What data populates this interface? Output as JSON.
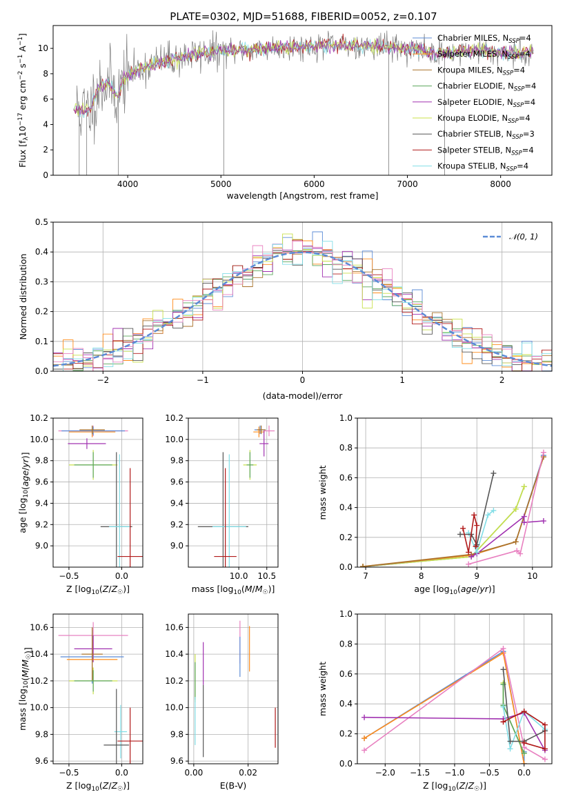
{
  "title": "PLATE=0302, MJD=51688, FIBERID=0052, z=0.107",
  "colors": {
    "Chabrier MILES": "#5b8bd6",
    "Salpeter MILES": "#ff8c1a",
    "Kroupa MILES": "#a8722a",
    "Chabrier ELODIE": "#5aa55a",
    "Salpeter ELODIE": "#a030b0",
    "Kroupa ELODIE": "#c8e04a",
    "Chabrier STELIB": "#555555",
    "Salpeter STELIB": "#b01818",
    "Kroupa STELIB": "#80dde6",
    "Pink": "#e880c0",
    "Normal": "#5b8bd6"
  },
  "chart_data": [
    {
      "id": "spectrum",
      "type": "line",
      "xlabel": "wavelength [Angstrom, rest frame]",
      "ylabel": "Flux [fλ10⁻¹⁷ erg cm⁻² s⁻¹ A⁻¹]",
      "xlim": [
        3200,
        8550
      ],
      "ylim": [
        0,
        11.8
      ],
      "xticks": [
        4000,
        5000,
        6000,
        7000,
        8000
      ],
      "yticks": [
        0,
        2,
        4,
        6,
        8,
        10
      ],
      "legend_position": "top-right",
      "legend": [
        {
          "name": "Chabrier MILES, N_SSP=4",
          "base": "Chabrier MILES, N",
          "sub": "SSP",
          "tail": "=4",
          "color": "#5b8bd6"
        },
        {
          "name": "Salpeter MILES, N_SSP=4",
          "base": "Salpeter MILES, N",
          "sub": "SSP",
          "tail": "=4",
          "color": "#ff8c1a"
        },
        {
          "name": "Kroupa MILES, N_SSP=4",
          "base": "Kroupa MILES, N",
          "sub": "SSP",
          "tail": "=4",
          "color": "#a8722a"
        },
        {
          "name": "Chabrier ELODIE, N_SSP=4",
          "base": "Chabrier ELODIE, N",
          "sub": "SSP",
          "tail": "=4",
          "color": "#5aa55a"
        },
        {
          "name": "Salpeter ELODIE, N_SSP=4",
          "base": "Salpeter ELODIE, N",
          "sub": "SSP",
          "tail": "=4",
          "color": "#a030b0"
        },
        {
          "name": "Kroupa ELODIE, N_SSP=4",
          "base": "Kroupa ELODIE, N",
          "sub": "SSP",
          "tail": "=4",
          "color": "#c8e04a"
        },
        {
          "name": "Chabrier STELIB, N_SSP=3",
          "base": "Chabrier STELIB, N",
          "sub": "SSP",
          "tail": "=3",
          "color": "#555555"
        },
        {
          "name": "Salpeter STELIB, N_SSP=4",
          "base": "Salpeter STELIB, N",
          "sub": "SSP",
          "tail": "=4",
          "color": "#b01818"
        },
        {
          "name": "Kroupa STELIB, N_SSP=4",
          "base": "Kroupa STELIB, N",
          "sub": "SSP",
          "tail": "=4",
          "color": "#80dde6"
        }
      ],
      "continuum_knots": [
        [
          3400,
          5.6
        ],
        [
          3500,
          5.0
        ],
        [
          3600,
          5.2
        ],
        [
          3700,
          7.0
        ],
        [
          3800,
          7.3
        ],
        [
          3900,
          6.2
        ],
        [
          3950,
          7.6
        ],
        [
          4100,
          8.3
        ],
        [
          4300,
          8.8
        ],
        [
          4500,
          9.2
        ],
        [
          4800,
          9.6
        ],
        [
          5000,
          9.75
        ],
        [
          5500,
          10.0
        ],
        [
          6000,
          10.2
        ],
        [
          6500,
          10.25
        ],
        [
          7000,
          10.0
        ],
        [
          7300,
          9.6
        ],
        [
          7500,
          9.7
        ],
        [
          7800,
          9.8
        ],
        [
          8000,
          9.7
        ],
        [
          8200,
          9.6
        ],
        [
          8350,
          9.75
        ]
      ]
    },
    {
      "id": "residuals",
      "type": "bar",
      "xlabel": "(data-model)/error",
      "ylabel": "Normed distribution",
      "xlim": [
        -2.5,
        2.5
      ],
      "ylim": [
        0,
        0.5
      ],
      "xticks": [
        -2,
        -1,
        0,
        1,
        2
      ],
      "yticks": [
        0.0,
        0.1,
        0.2,
        0.3,
        0.4,
        0.5
      ],
      "legend": [
        {
          "name": "𝒩(0, 1)",
          "color": "#5b8bd6"
        }
      ],
      "legend_position": "top-right"
    },
    {
      "id": "age-vs-Z",
      "type": "scatter",
      "xlabel": "Z [log10(Z/Z☉)]",
      "ylabel": "age [log10(age/yr)]",
      "xlim": [
        -0.65,
        0.2
      ],
      "ylim": [
        8.8,
        10.2
      ],
      "xticks": [
        -0.5,
        0.0
      ],
      "yticks": [
        9.0,
        9.2,
        9.4,
        9.6,
        9.8,
        10.0,
        10.2
      ],
      "points": [
        {
          "x": -0.27,
          "y": 10.08,
          "xerr": 0.33,
          "yerr": 0.05,
          "color": "#e880c0"
        },
        {
          "x": -0.27,
          "y": 10.08,
          "xerr": 0.3,
          "yerr": 0.04,
          "color": "#5b8bd6"
        },
        {
          "x": -0.28,
          "y": 10.07,
          "xerr": 0.22,
          "yerr": 0.05,
          "color": "#ff8c1a"
        },
        {
          "x": -0.28,
          "y": 10.09,
          "xerr": 0.12,
          "yerr": 0.04,
          "color": "#a8722a"
        },
        {
          "x": -0.33,
          "y": 9.96,
          "xerr": 0.18,
          "yerr": 0.05,
          "color": "#a030b0"
        },
        {
          "x": -0.27,
          "y": 9.76,
          "xerr": 0.23,
          "yerr": 0.14,
          "color": "#c8e04a"
        },
        {
          "x": -0.27,
          "y": 9.76,
          "xerr": 0.18,
          "yerr": 0.12,
          "color": "#5aa55a"
        },
        {
          "x": -0.05,
          "y": 9.18,
          "xerr": 0.15,
          "yerr": 0.7,
          "color": "#555555"
        },
        {
          "x": -0.02,
          "y": 9.18,
          "xerr": 0.1,
          "yerr": 0.68,
          "color": "#80dde6"
        },
        {
          "x": 0.08,
          "y": 8.9,
          "xerr": 0.12,
          "yerr": 0.83,
          "color": "#b01818"
        }
      ]
    },
    {
      "id": "age-vs-mass",
      "type": "scatter",
      "xlabel": "mass [log10(M/M☉)]",
      "ylabel": "",
      "xlim": [
        9.1,
        10.7
      ],
      "ylim": [
        8.8,
        10.2
      ],
      "xticks": [
        10.0,
        10.5
      ],
      "yticks": [
        9.0,
        9.2,
        9.4,
        9.6,
        9.8,
        10.0,
        10.2
      ],
      "points": [
        {
          "x": 10.54,
          "y": 10.08,
          "xerr": 0.1,
          "yerr": 0.05,
          "color": "#e880c0"
        },
        {
          "x": 10.38,
          "y": 10.09,
          "xerr": 0.1,
          "yerr": 0.04,
          "color": "#5b8bd6"
        },
        {
          "x": 10.36,
          "y": 10.07,
          "xerr": 0.1,
          "yerr": 0.05,
          "color": "#ff8c1a"
        },
        {
          "x": 10.4,
          "y": 10.09,
          "xerr": 0.08,
          "yerr": 0.04,
          "color": "#a8722a"
        },
        {
          "x": 10.45,
          "y": 9.96,
          "xerr": 0.08,
          "yerr": 0.12,
          "color": "#a030b0"
        },
        {
          "x": 10.2,
          "y": 9.76,
          "xerr": 0.12,
          "yerr": 0.14,
          "color": "#c8e04a"
        },
        {
          "x": 10.2,
          "y": 9.76,
          "xerr": 0.06,
          "yerr": 0.12,
          "color": "#5aa55a"
        },
        {
          "x": 9.72,
          "y": 9.18,
          "xerr": 0.45,
          "yerr": 0.7,
          "color": "#555555"
        },
        {
          "x": 9.83,
          "y": 9.18,
          "xerr": 0.3,
          "yerr": 0.68,
          "color": "#80dde6"
        },
        {
          "x": 9.76,
          "y": 8.9,
          "xerr": 0.2,
          "yerr": 0.83,
          "color": "#b01818"
        }
      ]
    },
    {
      "id": "weight-vs-age",
      "type": "line",
      "xlabel": "age [log10(age/yr)]",
      "ylabel": "mass weight",
      "xlim": [
        6.85,
        10.35
      ],
      "ylim": [
        0,
        1.0
      ],
      "xticks": [
        7,
        8,
        9,
        10
      ],
      "yticks": [
        0.0,
        0.2,
        0.4,
        0.6,
        0.8,
        1.0
      ],
      "series": [
        {
          "color": "#5aa55a",
          "points": [
            [
              6.95,
              0.003
            ],
            [
              8.9,
              0.07
            ],
            [
              9.7,
              0.39
            ],
            [
              9.85,
              0.54
            ]
          ]
        },
        {
          "color": "#c8e04a",
          "points": [
            [
              6.95,
              0.003
            ],
            [
              8.9,
              0.07
            ],
            [
              9.7,
              0.39
            ],
            [
              9.85,
              0.54
            ]
          ]
        },
        {
          "color": "#5b8bd6",
          "points": [
            [
              6.95,
              0.003
            ],
            [
              8.9,
              0.08
            ],
            [
              9.7,
              0.17
            ],
            [
              10.2,
              0.75
            ]
          ]
        },
        {
          "color": "#ff8c1a",
          "points": [
            [
              6.95,
              0.004
            ],
            [
              8.9,
              0.08
            ],
            [
              9.7,
              0.17
            ],
            [
              10.2,
              0.74
            ]
          ]
        },
        {
          "color": "#a8722a",
          "points": [
            [
              6.95,
              0.004
            ],
            [
              8.9,
              0.085
            ],
            [
              9.7,
              0.17
            ],
            [
              10.2,
              0.74
            ]
          ]
        },
        {
          "color": "#a030b0",
          "points": [
            [
              8.9,
              0.07
            ],
            [
              9.0,
              0.09
            ],
            [
              9.85,
              0.34
            ],
            [
              9.85,
              0.3
            ],
            [
              10.2,
              0.31
            ]
          ]
        },
        {
          "color": "#e880c0",
          "points": [
            [
              8.85,
              0.02
            ],
            [
              9.72,
              0.11
            ],
            [
              9.78,
              0.09
            ],
            [
              10.2,
              0.77
            ]
          ]
        },
        {
          "color": "#80dde6",
          "points": [
            [
              8.85,
              0.23
            ],
            [
              9.0,
              0.1
            ],
            [
              9.2,
              0.35
            ],
            [
              9.3,
              0.38
            ]
          ]
        },
        {
          "color": "#555555",
          "points": [
            [
              8.7,
              0.22
            ],
            [
              8.9,
              0.22
            ],
            [
              9.0,
              0.15
            ],
            [
              9.3,
              0.63
            ]
          ]
        },
        {
          "color": "#b01818",
          "points": [
            [
              8.75,
              0.26
            ],
            [
              8.85,
              0.1
            ],
            [
              8.95,
              0.35
            ],
            [
              9.0,
              0.28
            ],
            [
              8.98,
              0.14
            ]
          ]
        }
      ]
    },
    {
      "id": "mass-vs-Z",
      "type": "scatter",
      "xlabel": "Z [log10(Z/Z☉)]",
      "ylabel": "mass [log10(M/M☉)]",
      "xlim": [
        -0.65,
        0.2
      ],
      "ylim": [
        9.58,
        10.7
      ],
      "xticks": [
        -0.5,
        0.0
      ],
      "yticks": [
        9.6,
        9.8,
        10.0,
        10.2,
        10.4,
        10.6
      ],
      "points": [
        {
          "x": -0.27,
          "y": 10.54,
          "xerr": 0.33,
          "yerr": 0.1,
          "color": "#e880c0"
        },
        {
          "x": -0.27,
          "y": 10.44,
          "xerr": 0.18,
          "yerr": 0.1,
          "color": "#a030b0"
        },
        {
          "x": -0.28,
          "y": 10.38,
          "xerr": 0.3,
          "yerr": 0.2,
          "color": "#5b8bd6"
        },
        {
          "x": -0.28,
          "y": 10.36,
          "xerr": 0.24,
          "yerr": 0.15,
          "color": "#ff8c1a"
        },
        {
          "x": -0.28,
          "y": 10.4,
          "xerr": 0.1,
          "yerr": 0.2,
          "color": "#a8722a"
        },
        {
          "x": -0.27,
          "y": 10.2,
          "xerr": 0.23,
          "yerr": 0.1,
          "color": "#c8e04a"
        },
        {
          "x": -0.27,
          "y": 10.2,
          "xerr": 0.18,
          "yerr": 0.08,
          "color": "#5aa55a"
        },
        {
          "x": -0.01,
          "y": 9.82,
          "xerr": 0.06,
          "yerr": 0.2,
          "color": "#80dde6"
        },
        {
          "x": -0.05,
          "y": 9.72,
          "xerr": 0.12,
          "yerr": 0.42,
          "color": "#555555"
        },
        {
          "x": 0.08,
          "y": 9.75,
          "xerr": 0.12,
          "yerr": 0.25,
          "color": "#b01818"
        }
      ]
    },
    {
      "id": "mass-vs-ebv",
      "type": "scatter",
      "xlabel": "E(B-V)",
      "ylabel": "",
      "xlim": [
        -0.002,
        0.031
      ],
      "ylim": [
        9.58,
        10.7
      ],
      "xticks": [
        0.0,
        0.02
      ],
      "yticks": [
        9.6,
        9.8,
        10.0,
        10.2,
        10.4,
        10.6
      ],
      "points": [
        {
          "x": 0.0005,
          "y": 10.22,
          "yerr": 0.18,
          "color": "#c8e04a"
        },
        {
          "x": 0.0005,
          "y": 10.2,
          "yerr": 0.14,
          "color": "#5aa55a"
        },
        {
          "x": 0.0005,
          "y": 9.9,
          "yerr": 0.18,
          "color": "#80dde6"
        },
        {
          "x": 0.0035,
          "y": 10.33,
          "yerr": 0.16,
          "color": "#a030b0"
        },
        {
          "x": 0.0035,
          "y": 9.9,
          "yerr": 0.27,
          "color": "#555555"
        },
        {
          "x": 0.017,
          "y": 10.49,
          "yerr": 0.16,
          "color": "#e880c0"
        },
        {
          "x": 0.017,
          "y": 10.38,
          "yerr": 0.15,
          "color": "#5b8bd6"
        },
        {
          "x": 0.0205,
          "y": 10.44,
          "yerr": 0.17,
          "color": "#ff8c1a"
        },
        {
          "x": 0.03,
          "y": 9.85,
          "yerr": 0.15,
          "color": "#b01818"
        }
      ]
    },
    {
      "id": "weight-vs-Z",
      "type": "line",
      "xlabel": "Z [log10(Z/Z☉)]",
      "ylabel": "mass weight",
      "xlim": [
        -2.4,
        0.4
      ],
      "ylim": [
        0,
        1.0
      ],
      "xticks": [
        -2.0,
        -1.5,
        -1.0,
        -0.5,
        0.0
      ],
      "yticks": [
        0.0,
        0.2,
        0.4,
        0.6,
        0.8,
        1.0
      ],
      "series": [
        {
          "color": "#5b8bd6",
          "points": [
            [
              -2.3,
              0.17
            ],
            [
              -0.3,
              0.75
            ],
            [
              0.0,
              0.0
            ],
            [
              0.0,
              0.08
            ]
          ]
        },
        {
          "color": "#ff8c1a",
          "points": [
            [
              -2.3,
              0.17
            ],
            [
              -0.3,
              0.74
            ],
            [
              0.0,
              0.0
            ]
          ]
        },
        {
          "color": "#e880c0",
          "points": [
            [
              -2.3,
              0.09
            ],
            [
              -0.3,
              0.77
            ],
            [
              0.0,
              0.11
            ],
            [
              0.3,
              0.03
            ]
          ]
        },
        {
          "color": "#a030b0",
          "points": [
            [
              -2.3,
              0.31
            ],
            [
              -0.3,
              0.3
            ],
            [
              0.0,
              0.34
            ],
            [
              0.3,
              0.09
            ]
          ]
        },
        {
          "color": "#c8e04a",
          "points": [
            [
              -0.3,
              0.54
            ],
            [
              -0.3,
              0.39
            ],
            [
              0.0,
              0.07
            ]
          ]
        },
        {
          "color": "#5aa55a",
          "points": [
            [
              -0.3,
              0.53
            ],
            [
              -0.3,
              0.39
            ],
            [
              0.0,
              0.07
            ]
          ]
        },
        {
          "color": "#80dde6",
          "points": [
            [
              -0.3,
              0.38
            ],
            [
              -0.2,
              0.1
            ],
            [
              0.0,
              0.35
            ],
            [
              0.3,
              0.23
            ]
          ]
        },
        {
          "color": "#555555",
          "points": [
            [
              -0.3,
              0.63
            ],
            [
              -0.2,
              0.15
            ],
            [
              0.0,
              0.15
            ],
            [
              0.3,
              0.22
            ]
          ]
        },
        {
          "color": "#b01818",
          "points": [
            [
              -0.3,
              0.28
            ],
            [
              0.0,
              0.35
            ],
            [
              0.3,
              0.26
            ],
            [
              0.3,
              0.1
            ],
            [
              0.0,
              0.14
            ]
          ]
        }
      ]
    }
  ]
}
